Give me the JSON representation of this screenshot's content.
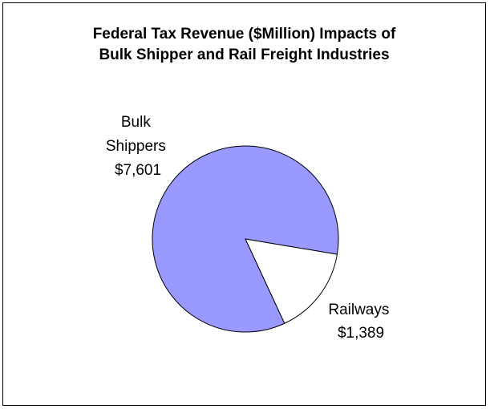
{
  "chart_data": {
    "type": "pie",
    "title_lines": [
      "Federal Tax Revenue ($Million) Impacts of",
      "Bulk Shipper and Rail Freight Industries"
    ],
    "slices": [
      {
        "name_lines": [
          "Bulk",
          "Shippers"
        ],
        "value": 7601,
        "value_label": "$7,601",
        "color": "#9999ff"
      },
      {
        "name_lines": [
          "Railways"
        ],
        "value": 1389,
        "value_label": "$1,389",
        "color": "#ffffff"
      }
    ],
    "legend": "none"
  }
}
